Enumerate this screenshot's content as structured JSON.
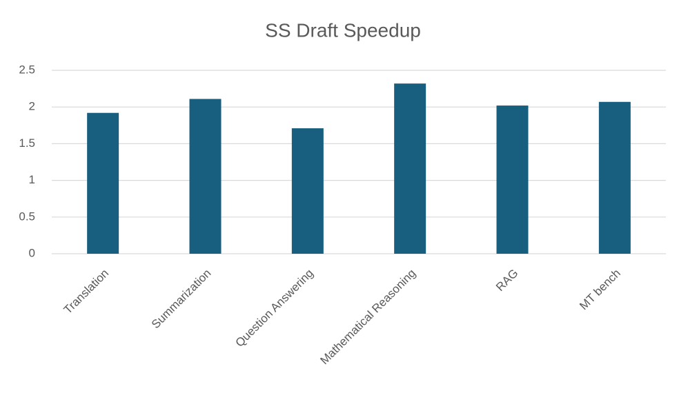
{
  "chart_data": {
    "type": "bar",
    "title": "SS Draft Speedup",
    "categories": [
      "Translation",
      "Summarization",
      "Question Answering",
      "Mathematical Reasoning",
      "RAG",
      "MT bench"
    ],
    "values": [
      1.92,
      2.11,
      1.71,
      2.32,
      2.02,
      2.07
    ],
    "color": "#175e7f",
    "ylim": [
      0,
      2.5
    ],
    "yticks": [
      0,
      0.5,
      1,
      1.5,
      2,
      2.5
    ],
    "grid": true
  }
}
